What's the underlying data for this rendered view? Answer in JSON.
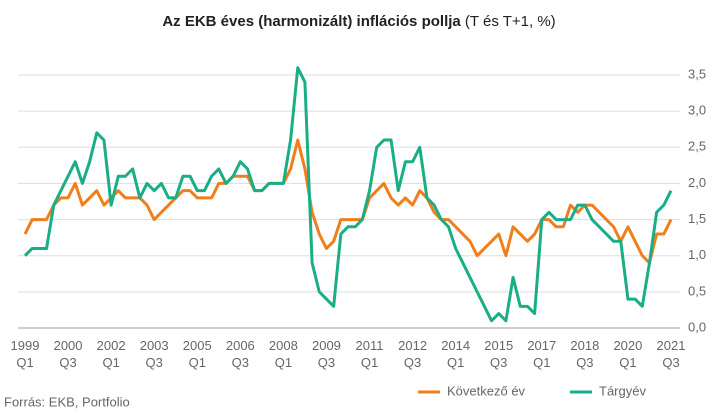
{
  "chart_data": {
    "type": "line",
    "title": "Az EKB éves (harmonizált) inflációs pollja",
    "subtitle": "(T és T+1, %)",
    "source": "Forrás: EKB, Portfolio",
    "categories": [
      "1999 Q1",
      null,
      null,
      null,
      null,
      null,
      "2000 Q3",
      null,
      null,
      null,
      null,
      null,
      "2002 Q1",
      null,
      null,
      null,
      null,
      null,
      "2003 Q3",
      null,
      null,
      null,
      null,
      null,
      "2005 Q1",
      null,
      null,
      null,
      null,
      null,
      "2006 Q3",
      null,
      null,
      null,
      null,
      null,
      "2008 Q1",
      null,
      null,
      null,
      null,
      null,
      "2009 Q3",
      null,
      null,
      null,
      null,
      null,
      "2011 Q1",
      null,
      null,
      null,
      null,
      null,
      "2012 Q3",
      null,
      null,
      null,
      null,
      null,
      "2014 Q1",
      null,
      null,
      null,
      null,
      null,
      "2015 Q3",
      null,
      null,
      null,
      null,
      null,
      "2017 Q1",
      null,
      null,
      null,
      null,
      null,
      "2018 Q3",
      null,
      null,
      null,
      null,
      null,
      "2020 Q1",
      null,
      null,
      null,
      null,
      null,
      "2021 Q3"
    ],
    "series": [
      {
        "name": "Következő év",
        "color": "#f07f1b",
        "values": [
          1.3,
          1.5,
          1.5,
          1.5,
          1.7,
          1.8,
          1.8,
          2.0,
          1.7,
          1.8,
          1.9,
          1.7,
          1.8,
          1.9,
          1.8,
          1.8,
          1.8,
          1.7,
          1.5,
          1.6,
          1.7,
          1.8,
          1.9,
          1.9,
          1.8,
          1.8,
          1.8,
          2.0,
          2.0,
          2.1,
          2.1,
          2.1,
          1.9,
          1.9,
          2.0,
          2.0,
          2.0,
          2.2,
          2.6,
          2.2,
          1.6,
          1.3,
          1.1,
          1.2,
          1.5,
          1.5,
          1.5,
          1.5,
          1.8,
          1.9,
          2.0,
          1.8,
          1.7,
          1.8,
          1.7,
          1.9,
          1.8,
          1.6,
          1.5,
          1.5,
          1.4,
          1.3,
          1.2,
          1.0,
          1.1,
          1.2,
          1.3,
          1.0,
          1.4,
          1.3,
          1.2,
          1.3,
          1.5,
          1.5,
          1.4,
          1.4,
          1.7,
          1.6,
          1.7,
          1.7,
          1.6,
          1.5,
          1.4,
          1.2,
          1.4,
          1.2,
          1.0,
          0.9,
          1.3,
          1.3,
          1.5
        ]
      },
      {
        "name": "Tárgyév",
        "color": "#1aae86",
        "values": [
          1.0,
          1.1,
          1.1,
          1.1,
          1.7,
          1.9,
          2.1,
          2.3,
          2.0,
          2.3,
          2.7,
          2.6,
          1.7,
          2.1,
          2.1,
          2.2,
          1.8,
          2.0,
          1.9,
          2.0,
          1.8,
          1.8,
          2.1,
          2.1,
          1.9,
          1.9,
          2.1,
          2.2,
          2.0,
          2.1,
          2.3,
          2.2,
          1.9,
          1.9,
          2.0,
          2.0,
          2.0,
          2.6,
          3.6,
          3.4,
          0.9,
          0.5,
          0.4,
          0.3,
          1.3,
          1.4,
          1.4,
          1.5,
          1.9,
          2.5,
          2.6,
          2.6,
          1.9,
          2.3,
          2.3,
          2.5,
          1.8,
          1.7,
          1.5,
          1.4,
          1.1,
          0.9,
          0.7,
          0.5,
          0.3,
          0.1,
          0.2,
          0.1,
          0.7,
          0.3,
          0.3,
          0.2,
          1.5,
          1.6,
          1.5,
          1.5,
          1.5,
          1.7,
          1.7,
          1.5,
          1.4,
          1.3,
          1.2,
          1.2,
          0.4,
          0.4,
          0.3,
          0.9,
          1.6,
          1.7,
          1.9
        ]
      }
    ],
    "ylim": [
      0,
      3.5
    ],
    "yticks": [
      {
        "value": 0,
        "label": "0,0"
      },
      {
        "value": 0.5,
        "label": "0,5"
      },
      {
        "value": 1,
        "label": "1,0"
      },
      {
        "value": 1.5,
        "label": "1,5"
      },
      {
        "value": 2,
        "label": "2,0"
      },
      {
        "value": 2.5,
        "label": "2,5"
      },
      {
        "value": 3,
        "label": "3,0"
      },
      {
        "value": 3.5,
        "label": "3,5"
      }
    ],
    "grid": true,
    "legend": "bottom-right"
  }
}
